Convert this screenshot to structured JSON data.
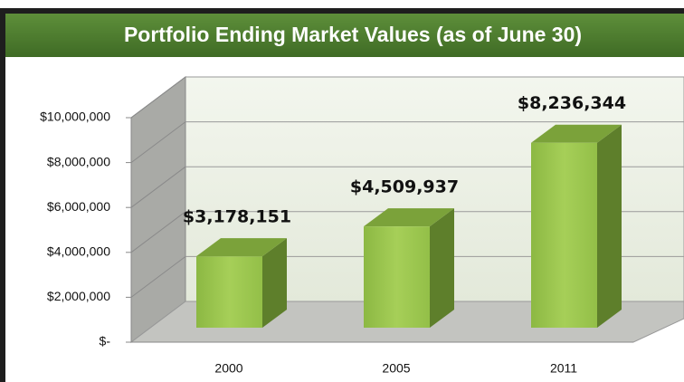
{
  "chart_data": {
    "type": "bar3d",
    "title": "Portfolio Ending Market Values (as of June 30)",
    "categories": [
      "2000",
      "2005",
      "2011"
    ],
    "values": [
      3178151,
      4509937,
      8236344
    ],
    "value_labels": [
      "$3,178,151",
      "$4,509,937",
      "$8,236,344"
    ],
    "color": "#9bc44a",
    "ylim": [
      0,
      10000000
    ],
    "yticks": [
      {
        "value": 0,
        "label": "$-"
      },
      {
        "value": 2000000,
        "label": "$2,000,000"
      },
      {
        "value": 4000000,
        "label": "$4,000,000"
      },
      {
        "value": 6000000,
        "label": "$6,000,000"
      },
      {
        "value": 8000000,
        "label": "$8,000,000"
      },
      {
        "value": 10000000,
        "label": "$10,000,000"
      }
    ],
    "grid": true
  }
}
